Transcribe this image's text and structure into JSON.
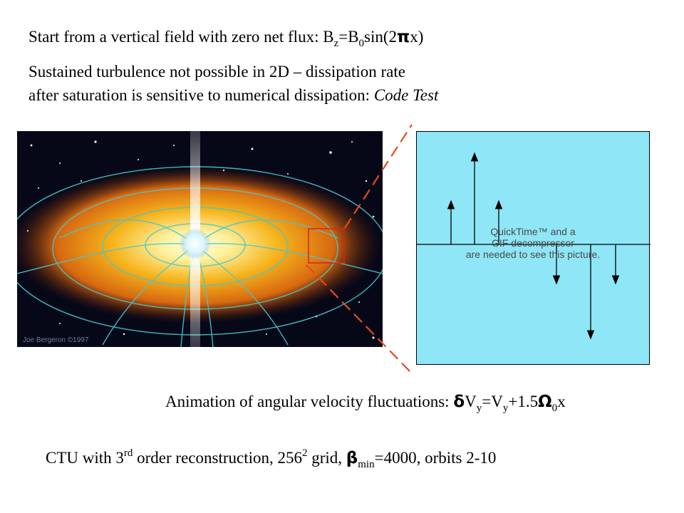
{
  "lines": {
    "l1": {
      "text": "Start from a vertical field with zero net flux: B",
      "sub1": "z",
      "eq": "=B",
      "sub2": "0",
      "tail1": "sin(2",
      "sym": "π",
      "tail2": "x)"
    },
    "l2": "Sustained turbulence not possible in 2D – dissipation rate",
    "l3_a": "after saturation is sensitive to numerical dissipation: ",
    "l3_b": "Code Test",
    "l4": {
      "a": "Animation of angular velocity fluctuations: ",
      "sym1": "δ",
      "b": "V",
      "sub1": "y",
      "c": "=V",
      "sub2": "y",
      "d": "+1.5",
      "sym2": "Ω",
      "sub3": "0",
      "e": "x"
    },
    "l5": {
      "a": "CTU with 3",
      "sup1": "rd",
      "b": " order reconstruction, 256",
      "sup2": "2",
      "c": " grid, ",
      "sym": "β",
      "sub1": "min",
      "d": "=4000, orbits 2-10"
    }
  },
  "image": {
    "credit": "Joe Bergeron ©1997",
    "colors": {
      "space": "#060818",
      "disk_core": "#fff6b0",
      "disk_mid": "#f4b21a",
      "disk_outer": "#c4560c",
      "field_lines": "#46c8d0"
    }
  },
  "zoom_panel": {
    "background": "#8ee6f6",
    "placeholder": [
      "QuickTime™ and a",
      "GIF decompressor",
      "are needed to see this picture."
    ]
  },
  "colors": {
    "zoom_box": "#e02010",
    "zoom_lines": "#e84a1a"
  }
}
